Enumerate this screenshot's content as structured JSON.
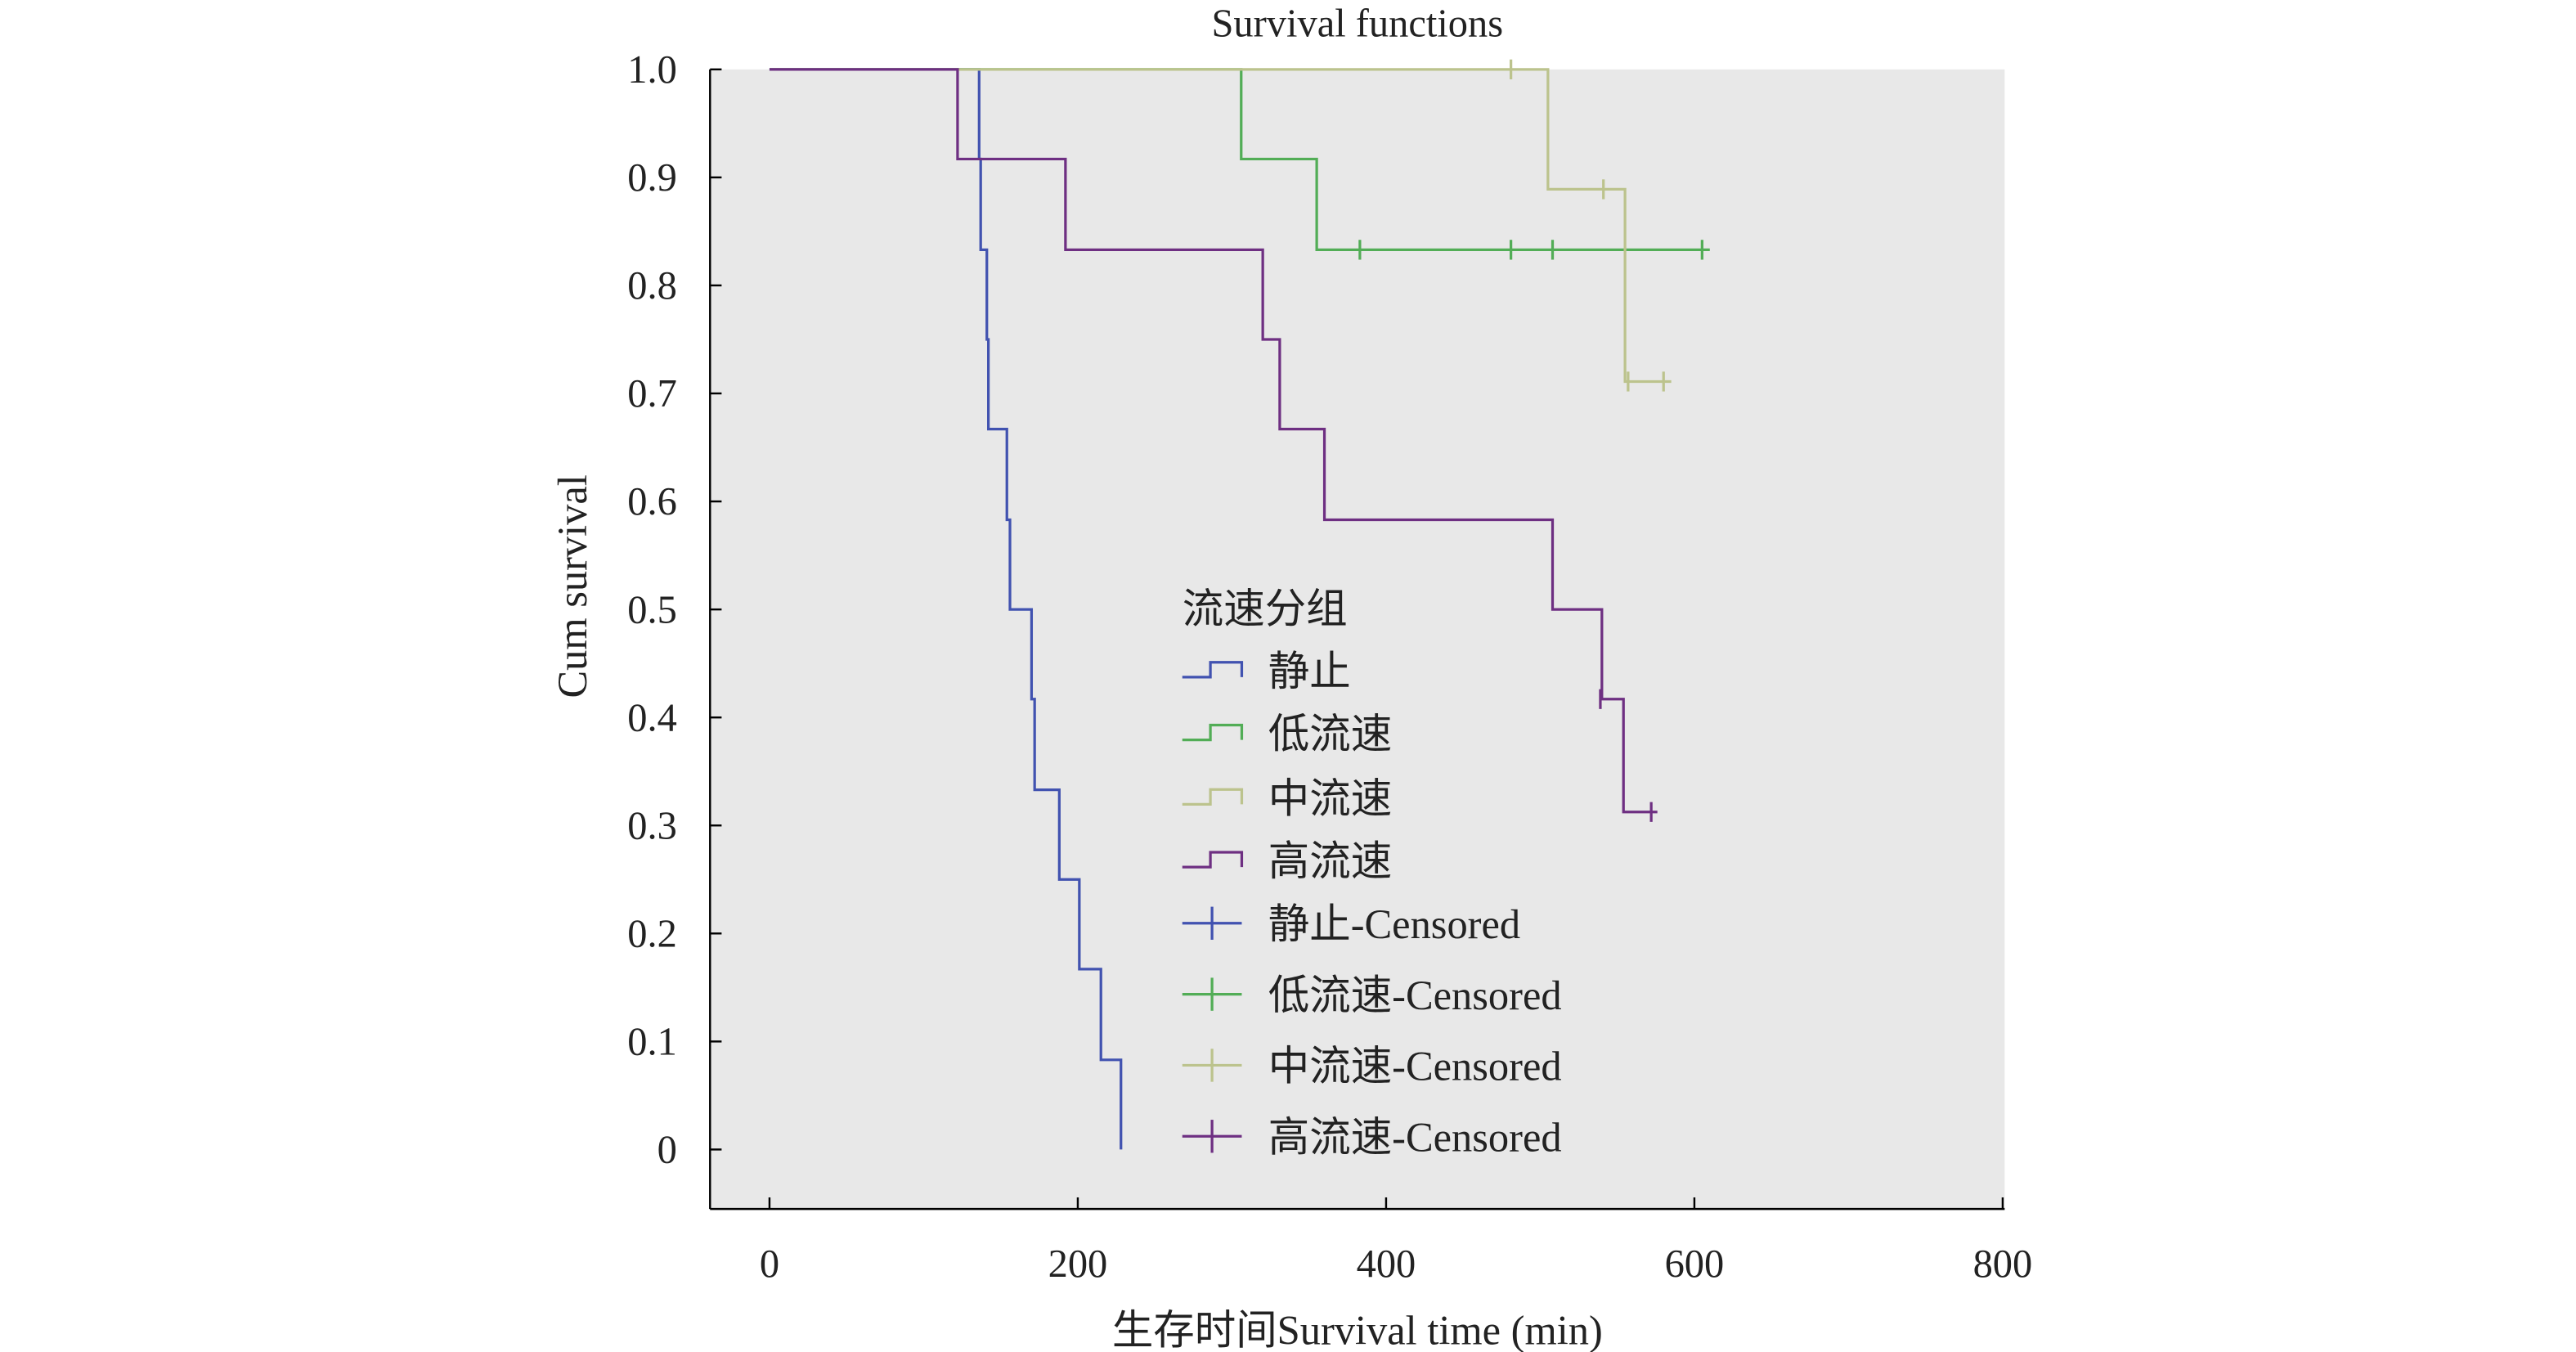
{
  "chart_data": {
    "type": "line",
    "subtype": "kaplan-meier step",
    "title": "Survival functions",
    "xlabel": "生存时间Survival time (min)",
    "ylabel": "Cum survival",
    "xlim": [
      -40,
      800
    ],
    "ylim": [
      -0.055,
      1.0
    ],
    "xticks": [
      0,
      200,
      400,
      600,
      800
    ],
    "xtick_labels": [
      "0",
      "200",
      "400",
      "600",
      "800"
    ],
    "yticks": [
      0,
      0.1,
      0.2,
      0.3,
      0.4,
      0.5,
      0.6,
      0.7,
      0.8,
      0.9,
      1.0
    ],
    "ytick_labels": [
      "0",
      "0.1",
      "0.2",
      "0.3",
      "0.4",
      "0.5",
      "0.6",
      "0.7",
      "0.8",
      "0.9",
      "1.0"
    ],
    "grid": false,
    "legend": {
      "title": "流速分组",
      "placement": "center",
      "entries": [
        "静止",
        "低流速",
        "中流速",
        "高流速",
        "静止-Censored",
        "低流速-Censored",
        "中流速-Censored",
        "高流速-Censored"
      ]
    },
    "series": [
      {
        "name": "静止",
        "color": "#4152b0",
        "steps": [
          [
            0,
            1.0
          ],
          [
            136,
            0.917
          ],
          [
            137,
            0.833
          ],
          [
            141,
            0.75
          ],
          [
            142,
            0.667
          ],
          [
            154,
            0.583
          ],
          [
            156,
            0.5
          ],
          [
            170,
            0.417
          ],
          [
            172,
            0.333
          ],
          [
            188,
            0.25
          ],
          [
            201,
            0.167
          ],
          [
            215,
            0.083
          ],
          [
            228,
            0.0
          ]
        ],
        "end": 228,
        "censored": []
      },
      {
        "name": "低流速",
        "color": "#52ad56",
        "steps": [
          [
            0,
            1.0
          ],
          [
            306,
            0.917
          ],
          [
            355,
            0.833
          ]
        ],
        "end": 610,
        "censored": [
          [
            383,
            0.833
          ],
          [
            481,
            0.833
          ],
          [
            508,
            0.833
          ],
          [
            605,
            0.833
          ]
        ]
      },
      {
        "name": "中流速",
        "color": "#bcc38d",
        "steps": [
          [
            0,
            1.0
          ],
          [
            505,
            0.889
          ],
          [
            555,
            0.711
          ]
        ],
        "end": 585,
        "censored": [
          [
            481,
            1.0
          ],
          [
            541,
            0.889
          ],
          [
            557,
            0.711
          ],
          [
            580,
            0.711
          ]
        ]
      },
      {
        "name": "高流速",
        "color": "#6e2f82",
        "steps": [
          [
            0,
            1.0
          ],
          [
            122,
            0.917
          ],
          [
            192,
            0.833
          ],
          [
            320,
            0.75
          ],
          [
            331,
            0.667
          ],
          [
            360,
            0.583
          ],
          [
            508,
            0.5
          ],
          [
            540,
            0.417
          ],
          [
            554,
            0.3125
          ]
        ],
        "end": 576,
        "censored": [
          [
            539,
            0.417
          ],
          [
            572,
            0.3125
          ]
        ]
      }
    ]
  }
}
